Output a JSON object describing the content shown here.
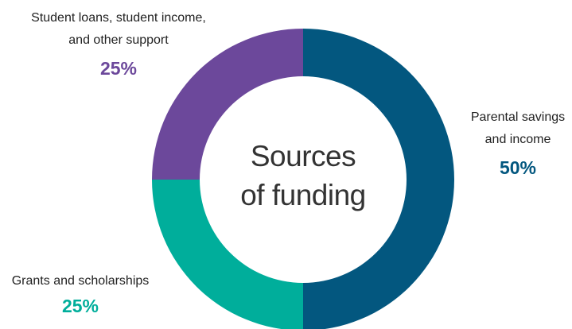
{
  "chart_data": {
    "type": "pie",
    "donut": true,
    "center_label": [
      "Sources",
      "of funding"
    ],
    "segments": [
      {
        "label_lines": [
          "Parental savings",
          "and income"
        ],
        "value": 50,
        "pct_label": "50%",
        "color": "#03577F"
      },
      {
        "label_lines": [
          "Grants and scholarships"
        ],
        "value": 25,
        "pct_label": "25%",
        "color": "#00AE9B"
      },
      {
        "label_lines": [
          "Student loans, student income,",
          "and other support"
        ],
        "value": 25,
        "pct_label": "25%",
        "color": "#6C489B"
      }
    ]
  }
}
